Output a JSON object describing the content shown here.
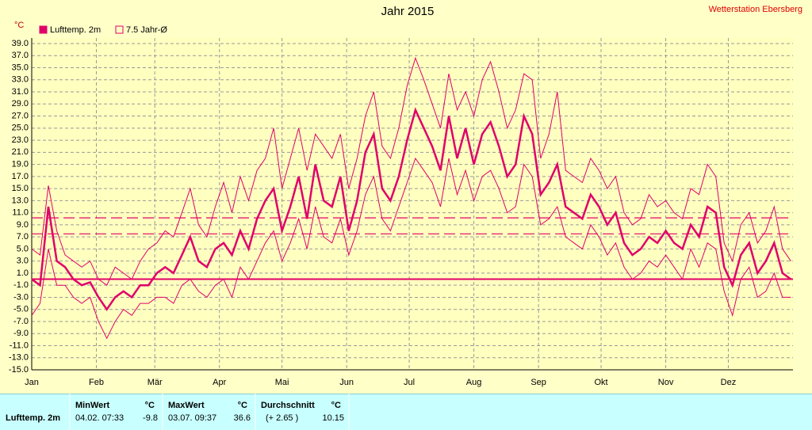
{
  "chart_data": {
    "type": "line",
    "title": "Jahr 2015",
    "station": "Wetterstation Ebersberg",
    "y_unit": "°C",
    "x": [
      1,
      5,
      9,
      13,
      17,
      21,
      25,
      29,
      33,
      37,
      41,
      45,
      49,
      53,
      57,
      61,
      65,
      69,
      73,
      77,
      81,
      85,
      89,
      93,
      97,
      101,
      105,
      109,
      113,
      117,
      121,
      125,
      129,
      133,
      137,
      141,
      145,
      149,
      153,
      157,
      161,
      165,
      169,
      173,
      177,
      181,
      185,
      189,
      193,
      197,
      201,
      205,
      209,
      213,
      217,
      221,
      225,
      229,
      233,
      237,
      241,
      245,
      249,
      253,
      257,
      261,
      265,
      269,
      273,
      277,
      281,
      285,
      289,
      293,
      297,
      301,
      305,
      309,
      313,
      317,
      321,
      325,
      329,
      333,
      337,
      341,
      345,
      349,
      353,
      357,
      361,
      365
    ],
    "series": [
      {
        "name": "Lufttemp. 2m",
        "color": "#e0006a",
        "width": 2.5,
        "values": [
          0,
          -1,
          12,
          3,
          2,
          0,
          -1,
          -0.5,
          -3,
          -5,
          -3,
          -2,
          -3,
          -1,
          -1,
          1,
          2,
          1,
          4,
          7,
          3,
          2,
          5,
          6,
          4,
          8,
          5,
          10,
          13,
          15,
          8,
          12,
          17,
          10,
          19,
          13,
          12,
          17,
          8,
          13,
          21,
          24,
          15,
          13,
          17,
          23,
          28,
          25,
          22,
          18,
          27,
          20,
          25,
          19,
          24,
          26,
          22,
          17,
          19,
          27,
          24,
          14,
          16,
          19,
          12,
          11,
          10,
          14,
          12,
          9,
          11,
          6,
          4,
          5,
          7,
          6,
          8,
          6,
          5,
          9,
          7,
          12,
          11,
          2,
          -1,
          4,
          6,
          1,
          3,
          6,
          1,
          0
        ]
      },
      {
        "color": "#e0006a",
        "width": 1,
        "values": [
          5,
          4,
          15.5,
          8,
          4,
          3,
          2,
          3,
          0,
          -1,
          2,
          1,
          0,
          3,
          5,
          6,
          8,
          7,
          11,
          15,
          9,
          7,
          12,
          16,
          11,
          17,
          13,
          18,
          20,
          25,
          15,
          20,
          25,
          18,
          24,
          22,
          20,
          24,
          15,
          20,
          27,
          31,
          22,
          20,
          25,
          32,
          36.6,
          33,
          29,
          25,
          34,
          28,
          31,
          27,
          33,
          36,
          31,
          25,
          28,
          34,
          33,
          20,
          24,
          31,
          18,
          17,
          16,
          20,
          18,
          15,
          17,
          11,
          9,
          10,
          14,
          12,
          13,
          11,
          10,
          15,
          14,
          19,
          17,
          6,
          3,
          9,
          11,
          6,
          8,
          12,
          5,
          3
        ]
      },
      {
        "color": "#e0006a",
        "width": 1,
        "values": [
          -6,
          -4,
          5,
          -1,
          -1,
          -3,
          -4,
          -3,
          -7,
          -9.8,
          -7,
          -5,
          -6,
          -4,
          -4,
          -3,
          -3,
          -4,
          -1,
          0,
          -2,
          -3,
          -1,
          0,
          -3,
          2,
          0,
          3,
          6,
          8,
          3,
          6,
          10,
          5,
          12,
          7,
          6,
          10,
          4,
          8,
          14,
          17,
          10,
          8,
          12,
          16,
          20,
          18,
          16,
          12,
          20,
          14,
          18,
          13,
          17,
          18,
          15,
          11,
          12,
          19,
          17,
          9,
          10,
          12,
          7,
          6,
          5,
          9,
          7,
          4,
          6,
          2,
          0,
          1,
          3,
          2,
          4,
          2,
          0,
          5,
          2,
          6,
          5,
          -2,
          -6,
          0,
          2,
          -3,
          -2,
          1,
          -3,
          -3
        ]
      }
    ],
    "hlines": [
      {
        "value": 0,
        "style": "solid",
        "color": "#e0006a"
      },
      {
        "value": 10.15,
        "style": "dashed",
        "color": "#e0006a"
      },
      {
        "value": 7.5,
        "style": "dashed",
        "color": "#e0006a",
        "name": "7.5 Jahr-Ø"
      }
    ],
    "xlim": [
      1,
      366
    ],
    "xticks": [
      {
        "value": 1,
        "label": "Jan"
      },
      {
        "value": 32,
        "label": "Feb"
      },
      {
        "value": 60,
        "label": "Mär"
      },
      {
        "value": 91,
        "label": "Apr"
      },
      {
        "value": 121,
        "label": "Mai"
      },
      {
        "value": 152,
        "label": "Jun"
      },
      {
        "value": 182,
        "label": "Jul"
      },
      {
        "value": 213,
        "label": "Aug"
      },
      {
        "value": 244,
        "label": "Sep"
      },
      {
        "value": 274,
        "label": "Okt"
      },
      {
        "value": 305,
        "label": "Nov"
      },
      {
        "value": 335,
        "label": "Dez"
      }
    ],
    "ylim": [
      -15,
      39
    ],
    "yticks": [
      {
        "value": 39,
        "label": "39.0"
      },
      {
        "value": 37,
        "label": "37.0"
      },
      {
        "value": 35,
        "label": "35.0"
      },
      {
        "value": 33,
        "label": "33.0"
      },
      {
        "value": 31,
        "label": "31.0"
      },
      {
        "value": 29,
        "label": "29.0"
      },
      {
        "value": 27,
        "label": "27.0"
      },
      {
        "value": 25,
        "label": "25.0"
      },
      {
        "value": 23,
        "label": "23.0"
      },
      {
        "value": 21,
        "label": "21.0"
      },
      {
        "value": 19,
        "label": "19.0"
      },
      {
        "value": 17,
        "label": "17.0"
      },
      {
        "value": 15,
        "label": "15.0"
      },
      {
        "value": 13,
        "label": "13.0"
      },
      {
        "value": 11,
        "label": "11.0"
      },
      {
        "value": 9,
        "label": "9.0"
      },
      {
        "value": 7,
        "label": "7.0"
      },
      {
        "value": 5,
        "label": "5.0"
      },
      {
        "value": 3,
        "label": "3.0"
      },
      {
        "value": 1,
        "label": "1.0"
      },
      {
        "value": -1,
        "label": "-1.0"
      },
      {
        "value": -3,
        "label": "-3.0"
      },
      {
        "value": -5,
        "label": "-5.0"
      },
      {
        "value": -7,
        "label": "-7.0"
      },
      {
        "value": -9,
        "label": "-9.0"
      },
      {
        "value": -11,
        "label": "-11.0"
      },
      {
        "value": -13,
        "label": "-13.0"
      },
      {
        "value": -15,
        "label": "-15.0"
      }
    ],
    "grid": true
  },
  "stats": {
    "headers": [
      {
        "label": "MinWert",
        "unit": "°C"
      },
      {
        "label": "MaxWert",
        "unit": "°C"
      },
      {
        "label": "Durchschnitt",
        "unit": "°C"
      }
    ],
    "rows": [
      {
        "label": "Lufttemp. 2m",
        "cells": [
          [
            "04.02.  07:33",
            "-9.8"
          ],
          [
            "03.07.  09:37",
            "36.6"
          ],
          [
            "(+ 2.65 )",
            "10.15"
          ]
        ]
      }
    ]
  }
}
